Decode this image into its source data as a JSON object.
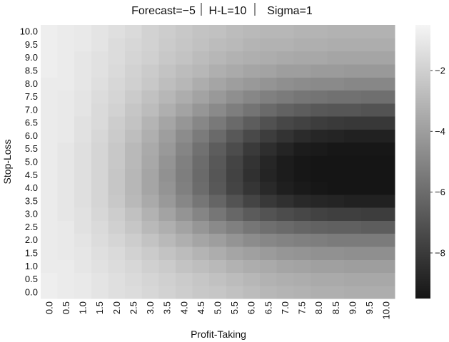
{
  "chart_data": {
    "type": "heatmap",
    "title_parts": [
      "Forecast=−5",
      "H-L=10",
      "Sigma=1"
    ],
    "xlabel": "Profit-Taking",
    "ylabel": "Stop-Loss",
    "x_ticks": [
      "0.0",
      "0.5",
      "1.0",
      "1.5",
      "2.0",
      "2.5",
      "3.0",
      "3.5",
      "4.0",
      "4.5",
      "5.0",
      "5.5",
      "6.0",
      "6.5",
      "7.0",
      "7.5",
      "8.0",
      "8.5",
      "9.0",
      "9.5",
      "10.0"
    ],
    "y_ticks": [
      "0.0",
      "0.5",
      "1.0",
      "1.5",
      "2.0",
      "2.5",
      "3.0",
      "3.5",
      "4.0",
      "4.5",
      "5.0",
      "5.5",
      "6.0",
      "6.5",
      "7.0",
      "7.5",
      "8.0",
      "8.5",
      "9.0",
      "9.5",
      "10.0"
    ],
    "x_range": [
      0,
      10
    ],
    "y_range": [
      0,
      10
    ],
    "colorbar": {
      "range": [
        -9.5,
        -0.5
      ],
      "ticks": [
        -2,
        -4,
        -6,
        -8
      ],
      "tick_labels": [
        "−2",
        "−4",
        "−6",
        "−8"
      ],
      "colormap": "gray",
      "low_color": "#151515",
      "high_color": "#f5f5f5"
    },
    "values": [
      [
        -0.8,
        -0.9,
        -1.0,
        -1.2,
        -1.4,
        -1.5,
        -1.7,
        -1.9,
        -2.1,
        -2.3,
        -2.4,
        -2.6,
        -2.8,
        -3.0,
        -3.1,
        -3.2,
        -3.3,
        -3.3,
        -3.4,
        -3.4,
        -3.4
      ],
      [
        -0.8,
        -0.9,
        -1.0,
        -1.2,
        -1.4,
        -1.6,
        -1.8,
        -2.0,
        -2.2,
        -2.4,
        -2.6,
        -2.8,
        -3.0,
        -3.2,
        -3.3,
        -3.4,
        -3.5,
        -3.5,
        -3.6,
        -3.6,
        -3.6
      ],
      [
        -0.9,
        -0.9,
        -1.1,
        -1.3,
        -1.5,
        -1.7,
        -2.0,
        -2.2,
        -2.5,
        -2.7,
        -2.9,
        -3.2,
        -3.4,
        -3.5,
        -3.7,
        -3.8,
        -3.9,
        -3.9,
        -4.0,
        -4.0,
        -4.0
      ],
      [
        -0.9,
        -1.0,
        -1.1,
        -1.4,
        -1.6,
        -1.9,
        -2.2,
        -2.5,
        -2.8,
        -3.1,
        -3.4,
        -3.7,
        -3.9,
        -4.1,
        -4.3,
        -4.4,
        -4.5,
        -4.5,
        -4.6,
        -4.6,
        -4.6
      ],
      [
        -0.9,
        -1.0,
        -1.2,
        -1.5,
        -1.8,
        -2.1,
        -2.5,
        -2.9,
        -3.3,
        -3.7,
        -4.0,
        -4.4,
        -4.7,
        -4.9,
        -5.1,
        -5.2,
        -5.3,
        -5.4,
        -5.4,
        -5.4,
        -5.4
      ],
      [
        -0.9,
        -1.0,
        -1.3,
        -1.6,
        -2.0,
        -2.4,
        -2.9,
        -3.3,
        -3.8,
        -4.3,
        -4.8,
        -5.2,
        -5.6,
        -5.9,
        -6.1,
        -6.3,
        -6.4,
        -6.5,
        -6.5,
        -6.6,
        -6.6
      ],
      [
        -0.9,
        -1.1,
        -1.3,
        -1.7,
        -2.1,
        -2.6,
        -3.2,
        -3.8,
        -4.4,
        -5.0,
        -5.6,
        -6.2,
        -6.7,
        -7.0,
        -7.3,
        -7.5,
        -7.7,
        -7.8,
        -7.8,
        -7.9,
        -7.9
      ],
      [
        -0.9,
        -1.1,
        -1.4,
        -1.8,
        -2.3,
        -2.9,
        -3.5,
        -4.2,
        -4.9,
        -5.6,
        -6.3,
        -7.0,
        -7.6,
        -8.1,
        -8.4,
        -8.7,
        -8.8,
        -8.9,
        -9.0,
        -9.0,
        -9.0
      ],
      [
        -0.9,
        -1.1,
        -1.4,
        -1.8,
        -2.4,
        -3.0,
        -3.7,
        -4.4,
        -5.2,
        -6.0,
        -6.8,
        -7.6,
        -8.2,
        -8.7,
        -9.1,
        -9.3,
        -9.4,
        -9.5,
        -9.5,
        -9.5,
        -9.5
      ],
      [
        -0.9,
        -1.1,
        -1.4,
        -1.8,
        -2.4,
        -3.0,
        -3.7,
        -4.5,
        -5.3,
        -6.1,
        -6.9,
        -7.7,
        -8.4,
        -8.9,
        -9.2,
        -9.4,
        -9.5,
        -9.5,
        -9.5,
        -9.5,
        -9.5
      ],
      [
        -0.9,
        -1.1,
        -1.4,
        -1.8,
        -2.3,
        -2.9,
        -3.6,
        -4.4,
        -5.2,
        -6.0,
        -6.8,
        -7.6,
        -8.3,
        -8.8,
        -9.2,
        -9.4,
        -9.5,
        -9.5,
        -9.5,
        -9.5,
        -9.5
      ],
      [
        -0.9,
        -1.1,
        -1.4,
        -1.8,
        -2.3,
        -2.9,
        -3.5,
        -4.2,
        -5.0,
        -5.8,
        -6.6,
        -7.3,
        -8.0,
        -8.5,
        -8.9,
        -9.2,
        -9.3,
        -9.4,
        -9.4,
        -9.4,
        -9.4
      ],
      [
        -0.9,
        -1.0,
        -1.3,
        -1.7,
        -2.2,
        -2.7,
        -3.3,
        -4.0,
        -4.7,
        -5.4,
        -6.1,
        -6.8,
        -7.4,
        -7.9,
        -8.3,
        -8.6,
        -8.8,
        -8.9,
        -9.0,
        -9.0,
        -9.0
      ],
      [
        -0.9,
        -1.0,
        -1.3,
        -1.6,
        -2.1,
        -2.5,
        -3.1,
        -3.7,
        -4.3,
        -4.9,
        -5.5,
        -6.1,
        -6.6,
        -7.1,
        -7.5,
        -7.7,
        -7.9,
        -8.0,
        -8.1,
        -8.1,
        -8.1
      ],
      [
        -0.9,
        -1.0,
        -1.2,
        -1.6,
        -1.9,
        -2.4,
        -2.8,
        -3.3,
        -3.8,
        -4.3,
        -4.8,
        -5.3,
        -5.7,
        -6.1,
        -6.4,
        -6.6,
        -6.8,
        -6.9,
        -6.9,
        -7.0,
        -7.0
      ],
      [
        -0.9,
        -1.0,
        -1.2,
        -1.5,
        -1.8,
        -2.2,
        -2.6,
        -3.0,
        -3.4,
        -3.8,
        -4.2,
        -4.6,
        -4.9,
        -5.2,
        -5.4,
        -5.6,
        -5.7,
        -5.8,
        -5.8,
        -5.9,
        -5.9
      ],
      [
        -0.9,
        -0.9,
        -1.1,
        -1.4,
        -1.7,
        -2.0,
        -2.3,
        -2.7,
        -3.0,
        -3.4,
        -3.7,
        -4.0,
        -4.2,
        -4.4,
        -4.6,
        -4.7,
        -4.8,
        -4.8,
        -4.9,
        -4.9,
        -4.9
      ],
      [
        -0.8,
        -0.9,
        -1.1,
        -1.3,
        -1.6,
        -1.9,
        -2.2,
        -2.5,
        -2.8,
        -3.0,
        -3.3,
        -3.5,
        -3.7,
        -3.8,
        -4.0,
        -4.0,
        -4.1,
        -4.1,
        -4.2,
        -4.2,
        -4.2
      ],
      [
        -0.8,
        -0.9,
        -1.1,
        -1.3,
        -1.5,
        -1.8,
        -2.0,
        -2.3,
        -2.5,
        -2.8,
        -3.0,
        -3.2,
        -3.3,
        -3.4,
        -3.5,
        -3.6,
        -3.6,
        -3.7,
        -3.7,
        -3.7,
        -3.7
      ],
      [
        -0.8,
        -0.9,
        -1.0,
        -1.2,
        -1.5,
        -1.7,
        -1.9,
        -2.2,
        -2.4,
        -2.6,
        -2.8,
        -2.9,
        -3.1,
        -3.2,
        -3.2,
        -3.3,
        -3.3,
        -3.4,
        -3.4,
        -3.4,
        -3.4
      ],
      [
        -0.8,
        -0.9,
        -1.0,
        -1.2,
        -1.4,
        -1.6,
        -1.9,
        -2.1,
        -2.3,
        -2.5,
        -2.6,
        -2.8,
        -2.9,
        -3.0,
        -3.0,
        -3.1,
        -3.1,
        -3.2,
        -3.2,
        -3.2,
        -3.2
      ]
    ]
  }
}
